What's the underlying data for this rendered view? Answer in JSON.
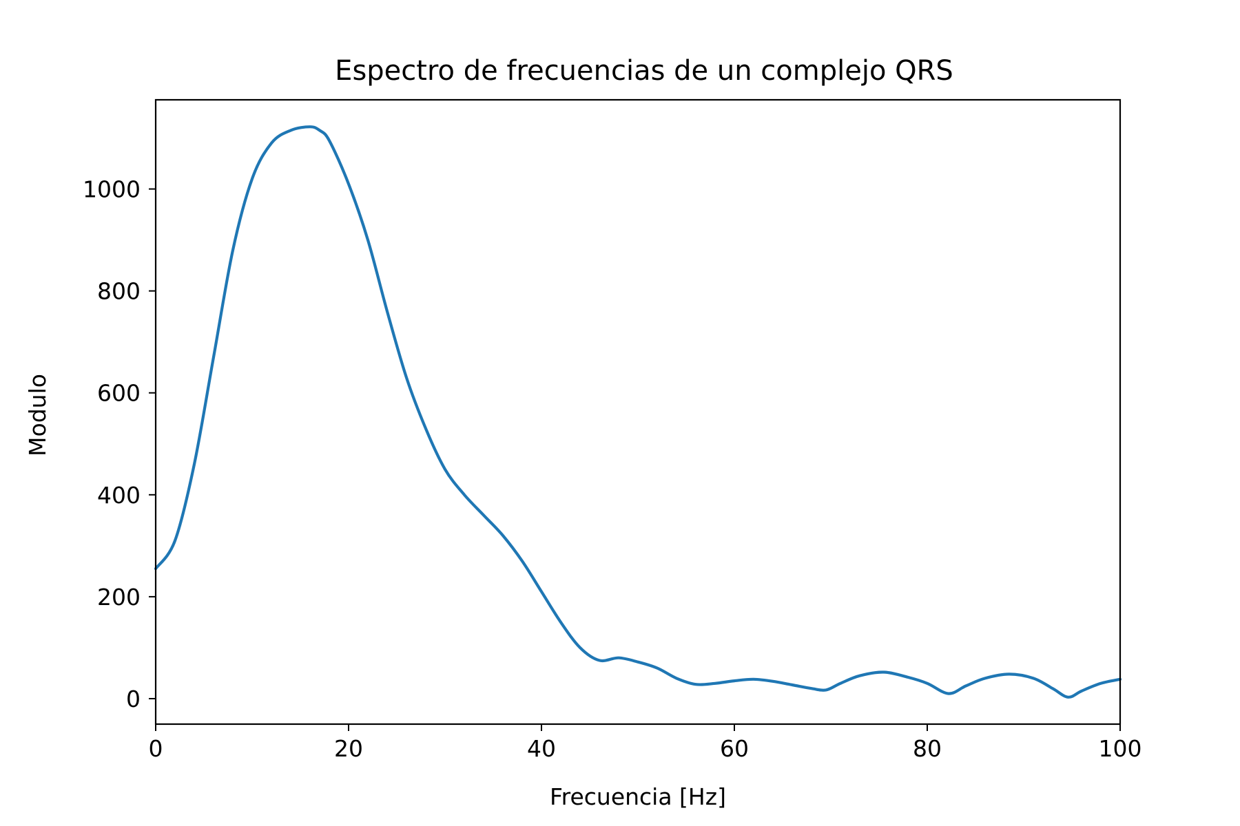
{
  "chart_data": {
    "type": "line",
    "title": "Espectro de frecuencias de un complejo QRS",
    "xlabel": "Frecuencia [Hz]",
    "ylabel": "Modulo",
    "xlim": [
      0,
      100
    ],
    "ylim": [
      -50,
      1175
    ],
    "xticks": [
      0,
      20,
      40,
      60,
      80,
      100
    ],
    "yticks": [
      0,
      200,
      400,
      600,
      800,
      1000
    ],
    "grid": false,
    "legend": "none",
    "colors": {
      "line": "#1f77b4",
      "axes": "#000000",
      "background": "#ffffff"
    },
    "series": [
      {
        "x": [
          0,
          2,
          4,
          6,
          8,
          10,
          12,
          14,
          16,
          17,
          18,
          20,
          22,
          24,
          26,
          28,
          30,
          32,
          34,
          36,
          38,
          40,
          42,
          44,
          46,
          48,
          50,
          52,
          54,
          56,
          58,
          60,
          62,
          64,
          66,
          68,
          69.5,
          71,
          73,
          75.5,
          78,
          80,
          82.2,
          84,
          86,
          88.5,
          91,
          93,
          94.6,
          96,
          98,
          100
        ],
        "y": [
          255,
          310,
          460,
          670,
          880,
          1020,
          1090,
          1115,
          1122,
          1115,
          1095,
          1010,
          900,
          760,
          630,
          530,
          450,
          400,
          360,
          320,
          270,
          210,
          150,
          100,
          75,
          80,
          72,
          60,
          40,
          28,
          30,
          35,
          38,
          34,
          27,
          20,
          17,
          30,
          45,
          52,
          42,
          30,
          10,
          25,
          40,
          48,
          40,
          20,
          3,
          15,
          30,
          38
        ]
      }
    ]
  }
}
